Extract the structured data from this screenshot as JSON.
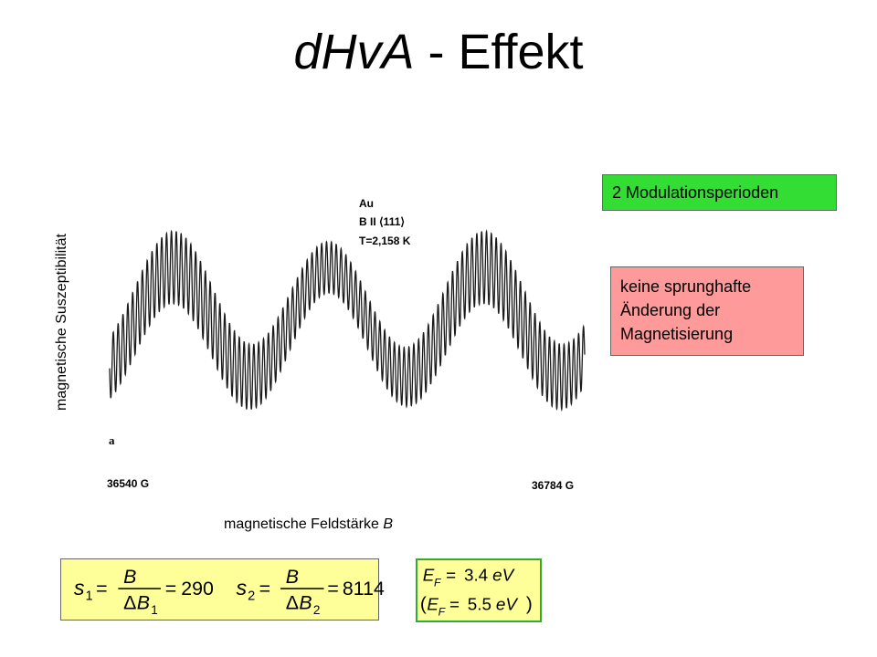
{
  "slide": {
    "title_italic": "dHvA",
    "title_rest": " - Effekt"
  },
  "figure": {
    "ylabel": "magnetische Suszeptibilität",
    "xlabel_prefix": "magnetische Feldstärke ",
    "xlabel_var": "B",
    "x_start": "36540 G",
    "x_end": "36784 G",
    "panel_letter": "a",
    "legend_sample": "Au",
    "legend_direction": "B II ⟨111⟩",
    "legend_temperature": "T=2,158 K"
  },
  "notes": {
    "green": "2 Modulationsperioden",
    "red_lines": [
      "keine sprunghafte",
      "Änderung der",
      "Magnetisierung"
    ]
  },
  "formula1": {
    "s1_var": "s",
    "s1_sub": "1",
    "s1_num": "B",
    "s1_den_delta": "Δ",
    "s1_den_var": "B",
    "s1_den_sub": "1",
    "s1_value": "290",
    "s2_var": "s",
    "s2_sub": "2",
    "s2_num": "B",
    "s2_den_delta": "Δ",
    "s2_den_var": "B",
    "s2_den_sub": "2",
    "s2_value": "8114",
    "equals": "="
  },
  "formula2": {
    "line1_var": "E",
    "line1_sub": "F",
    "line1_value": "3.4",
    "line1_unit": "eV",
    "line2_var": "E",
    "line2_sub": "F",
    "line2_value": "5.5",
    "line2_unit": "eV",
    "equals": "=",
    "open_paren": "(",
    "close_paren": ")"
  },
  "colors": {
    "green_box": "#33dd33",
    "red_box": "#ff9a9a",
    "yellow_box": "#ffff99"
  }
}
